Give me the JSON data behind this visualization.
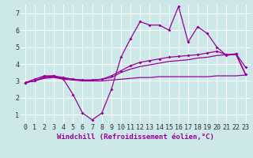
{
  "x": [
    0,
    1,
    2,
    3,
    4,
    5,
    6,
    7,
    8,
    9,
    10,
    11,
    12,
    13,
    14,
    15,
    16,
    17,
    18,
    19,
    20,
    21,
    22,
    23
  ],
  "line1": [
    2.9,
    3.1,
    3.3,
    3.3,
    3.1,
    2.2,
    1.1,
    0.7,
    1.1,
    2.5,
    4.4,
    5.5,
    6.5,
    6.3,
    6.3,
    6.0,
    7.4,
    5.3,
    6.2,
    5.8,
    5.0,
    4.5,
    4.6,
    3.8
  ],
  "line2": [
    2.9,
    3.0,
    3.15,
    3.2,
    3.1,
    3.05,
    3.0,
    3.0,
    3.0,
    3.05,
    3.1,
    3.15,
    3.2,
    3.2,
    3.25,
    3.25,
    3.25,
    3.25,
    3.25,
    3.25,
    3.3,
    3.3,
    3.3,
    3.35
  ],
  "line3": [
    2.9,
    3.0,
    3.2,
    3.25,
    3.15,
    3.1,
    3.05,
    3.05,
    3.1,
    3.2,
    3.5,
    3.7,
    3.85,
    3.95,
    4.05,
    4.15,
    4.2,
    4.25,
    4.35,
    4.4,
    4.5,
    4.55,
    4.55,
    3.35
  ],
  "line4": [
    2.9,
    3.0,
    3.25,
    3.3,
    3.2,
    3.1,
    3.05,
    3.05,
    3.1,
    3.3,
    3.6,
    3.9,
    4.1,
    4.2,
    4.3,
    4.4,
    4.45,
    4.5,
    4.55,
    4.65,
    4.75,
    4.55,
    4.6,
    3.4
  ],
  "line_color": "#990099",
  "bg_color": "#cce8e8",
  "grid_color": "#ffffff",
  "xlabel": "Windchill (Refroidissement éolien,°C)",
  "ylim": [
    0.5,
    7.5
  ],
  "xlim": [
    -0.5,
    23.5
  ],
  "yticks": [
    1,
    2,
    3,
    4,
    5,
    6,
    7
  ],
  "xticks": [
    0,
    1,
    2,
    3,
    4,
    5,
    6,
    7,
    8,
    9,
    10,
    11,
    12,
    13,
    14,
    15,
    16,
    17,
    18,
    19,
    20,
    21,
    22,
    23
  ],
  "xlabel_fontsize": 6.5,
  "tick_fontsize": 6,
  "marker": "D",
  "marker_size": 2.0,
  "line_width": 0.9
}
